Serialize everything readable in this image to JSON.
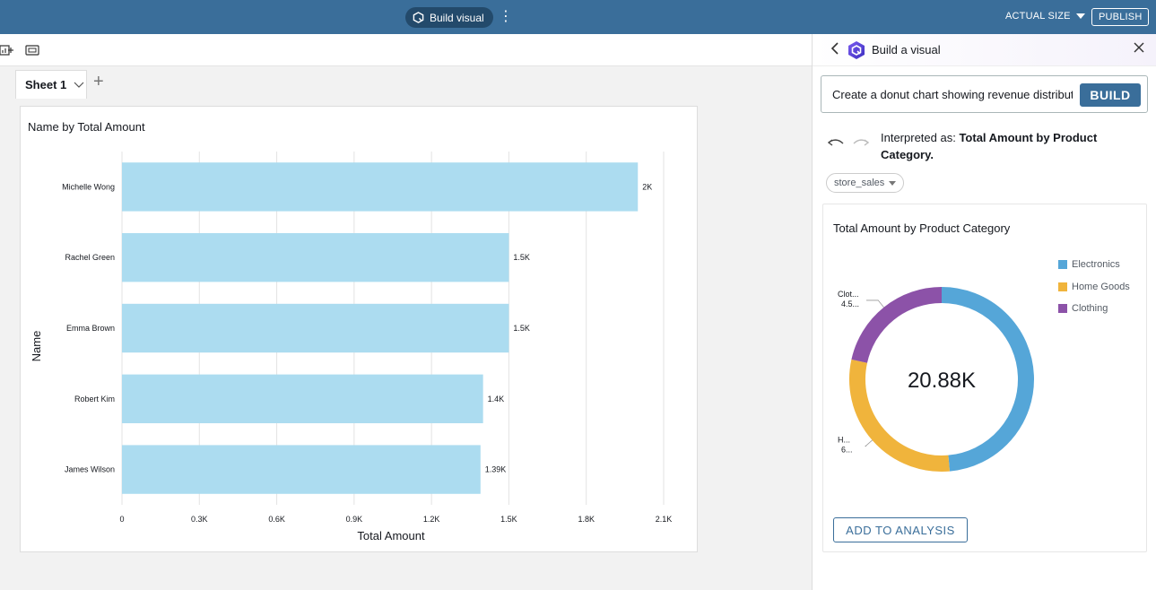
{
  "topbar": {
    "build_visual_label": "Build visual",
    "more_icon": "⋮",
    "actual_size_label": "ACTUAL SIZE",
    "publish_label": "PUBLISH"
  },
  "sheets": {
    "tabs": [
      {
        "label": "Sheet 1"
      }
    ],
    "add_icon": "+"
  },
  "main_visual": {
    "title": "Name by Total Amount"
  },
  "panel": {
    "title": "Build a visual",
    "prompt_value": "Create a donut chart showing revenue distribution by product category",
    "build_label": "BUILD",
    "interpreted_prefix": "Interpreted as: ",
    "interpreted_value": "Total Amount by Product Category.",
    "dataset": "store_sales",
    "preview_title": "Total Amount by Product Category",
    "add_to_analysis_label": "ADD TO ANALYSIS"
  },
  "colors": {
    "topbar": "#3a6e9a",
    "bar": "#acdcf0",
    "electronics": "#55a6d8",
    "home_goods": "#f0b43c",
    "clothing": "#8c52a8"
  },
  "chart_data": [
    {
      "type": "bar",
      "orientation": "horizontal",
      "title": "Name by Total Amount",
      "xlabel": "Total Amount",
      "ylabel": "Name",
      "categories": [
        "Michelle Wong",
        "Rachel Green",
        "Emma Brown",
        "Robert Kim",
        "James Wilson"
      ],
      "values": [
        2000,
        1500,
        1500,
        1400,
        1390
      ],
      "data_labels": [
        "2K",
        "1.5K",
        "1.5K",
        "1.4K",
        "1.39K"
      ],
      "xlim": [
        0,
        2100
      ],
      "xticks": [
        0,
        300,
        600,
        900,
        1200,
        1500,
        1800,
        2100
      ],
      "xtick_labels": [
        "0",
        "0.3K",
        "0.6K",
        "0.9K",
        "1.2K",
        "1.5K",
        "1.8K",
        "2.1K"
      ],
      "grid": true
    },
    {
      "type": "pie",
      "variant": "donut",
      "title": "Total Amount by Product Category",
      "center_label": "20.88K",
      "categories": [
        "Electronics",
        "Home Goods",
        "Clothing"
      ],
      "values": [
        10.15,
        6.23,
        4.5
      ],
      "colors": [
        "#55a6d8",
        "#f0b43c",
        "#8c52a8"
      ],
      "slice_labels": [
        {
          "category": "Clothing",
          "name": "Clot...",
          "value": "4.5..."
        },
        {
          "category": "Home Goods",
          "name": "H...",
          "value": "6..."
        }
      ],
      "legend_position": "right"
    }
  ]
}
